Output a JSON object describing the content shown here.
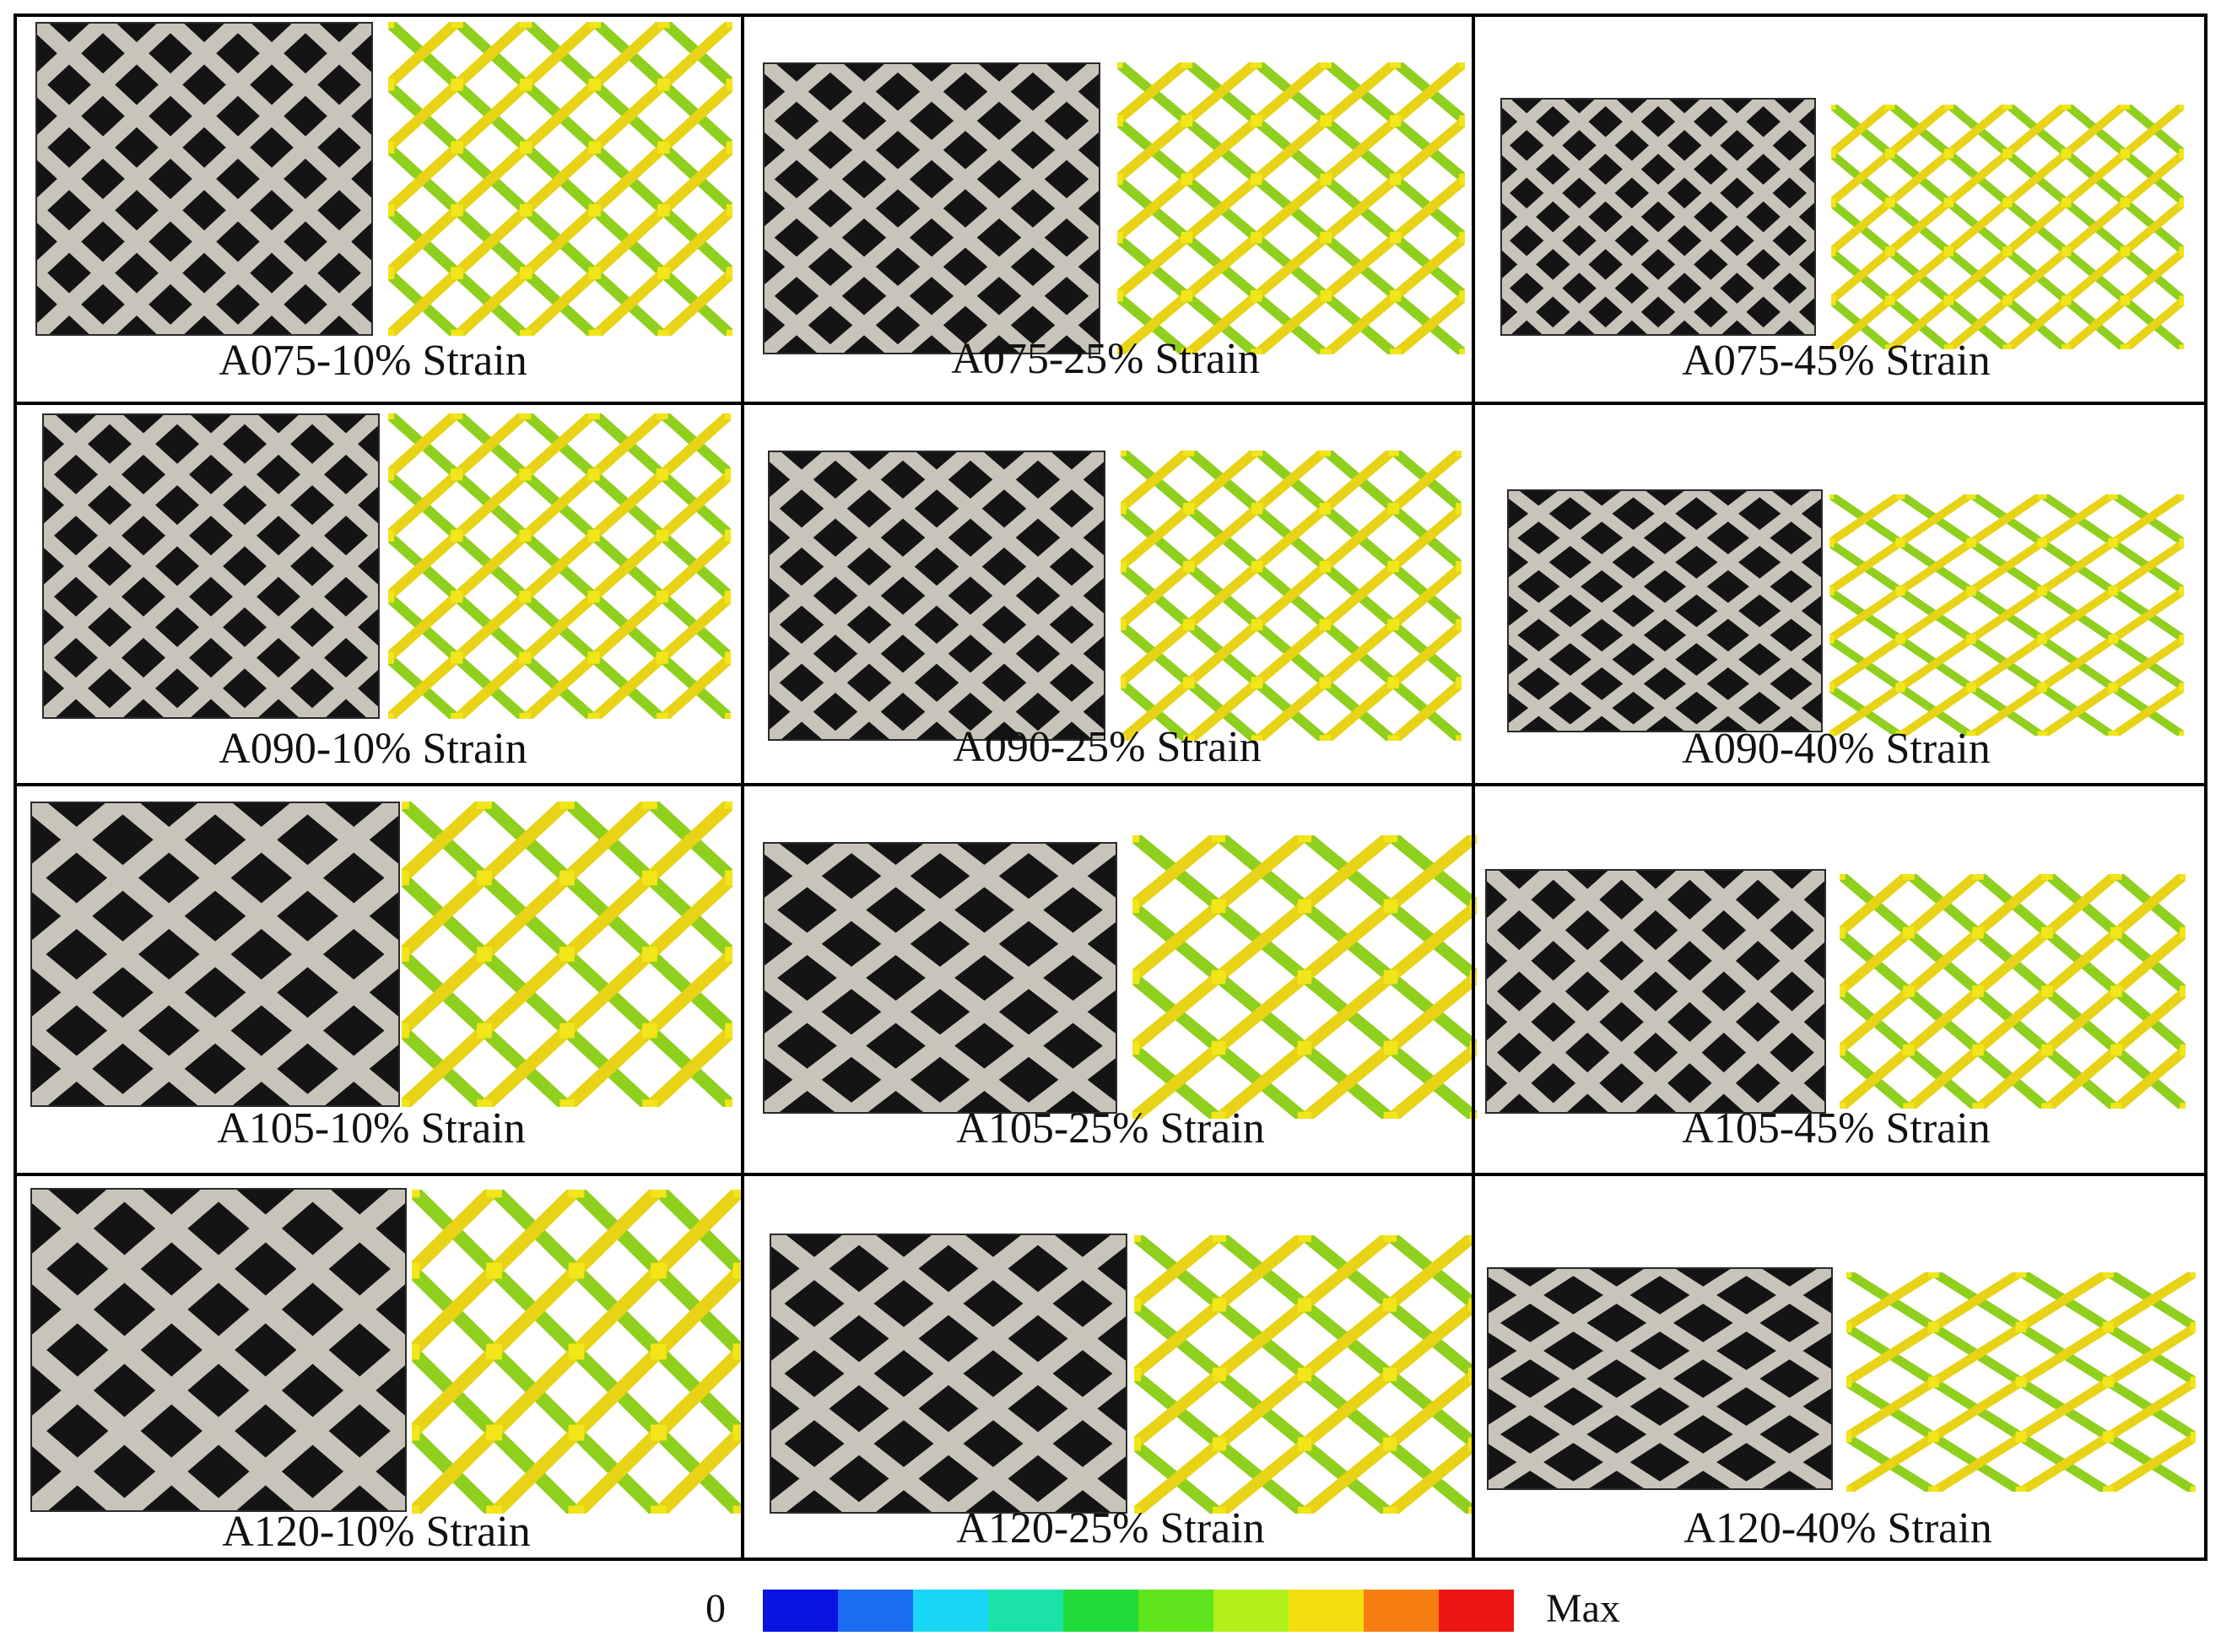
{
  "panels": [
    {
      "label": "A075-10% Strain",
      "specimen": "A075",
      "strain_percent": 10
    },
    {
      "label": "A075-25% Strain",
      "specimen": "A075",
      "strain_percent": 25
    },
    {
      "label": "A075-45% Strain",
      "specimen": "A075",
      "strain_percent": 45
    },
    {
      "label": "A090-10% Strain",
      "specimen": "A090",
      "strain_percent": 10
    },
    {
      "label": "A090-25% Strain",
      "specimen": "A090",
      "strain_percent": 25
    },
    {
      "label": "A090-40% Strain",
      "specimen": "A090",
      "strain_percent": 40
    },
    {
      "label": "A105-10% Strain",
      "specimen": "A105",
      "strain_percent": 10
    },
    {
      "label": "A105-25% Strain",
      "specimen": "A105",
      "strain_percent": 25
    },
    {
      "label": "A105-45% Strain",
      "specimen": "A105",
      "strain_percent": 45
    },
    {
      "label": "A120-10% Strain",
      "specimen": "A120",
      "strain_percent": 10
    },
    {
      "label": "A120-25% Strain",
      "specimen": "A120",
      "strain_percent": 25
    },
    {
      "label": "A120-40% Strain",
      "specimen": "A120",
      "strain_percent": 40
    }
  ],
  "colorbar": {
    "min_label": "0",
    "max_label": "Max",
    "colors": [
      "#0a14e0",
      "#1a6cf0",
      "#19d6f5",
      "#19e3a8",
      "#1fdc3a",
      "#5ee51b",
      "#b3f01a",
      "#f3df0f",
      "#f77f12",
      "#ee1612"
    ]
  },
  "colors": {
    "border": "#000000",
    "photo_background": "#141414",
    "photo_strut": "#c9c4ba",
    "sim_strut_low": "#8fcf1e",
    "sim_strut_high": "#e8d317",
    "sim_node": "#f2e51a"
  }
}
